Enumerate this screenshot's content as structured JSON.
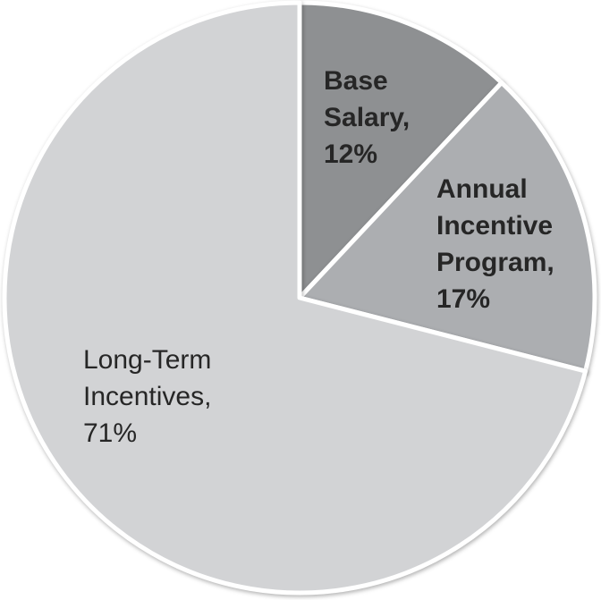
{
  "chart_data": {
    "type": "pie",
    "title": "",
    "legend": "none",
    "start_angle_deg_from_top": 0,
    "direction": "clockwise",
    "background_color": "#FFFFFF",
    "separator_color": "#FFFFFF",
    "label_color": "#262626",
    "categories": [
      "Base Salary",
      "Annual Incentive Program",
      "Long-Term Incentives"
    ],
    "values": [
      12,
      17,
      71
    ],
    "slices": [
      {
        "name": "Base Salary",
        "value_pct": 12,
        "color": "#8E9092",
        "label_text": "Base\nSalary,\n12%",
        "label_bold": true
      },
      {
        "name": "Annual Incentive Program",
        "value_pct": 17,
        "color": "#ACAEB1",
        "label_text": "Annual\nIncentive\nProgram,\n17%",
        "label_bold": true
      },
      {
        "name": "Long-Term Incentives",
        "value_pct": 71,
        "color": "#D2D3D5",
        "label_text": "Long-Term\nIncentives,\n71%",
        "label_bold": false
      }
    ]
  }
}
